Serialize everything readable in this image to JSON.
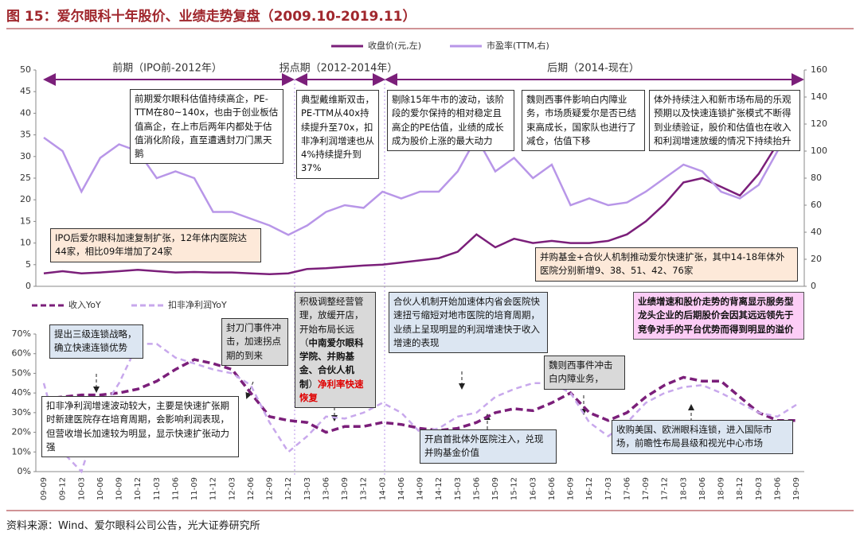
{
  "title": "图 15：爱尔眼科十年股价、业绩走势复盘（2009.10-2019.11）",
  "source": "资料来源：Wind、爱尔眼科公司公告，光大证券研究所",
  "chart_data": [
    {
      "type": "line",
      "period_labels": [
        "前期（IPO前-2012年）",
        "拐点期（2012-2014年）",
        "后期（2014-现在）"
      ],
      "series": [
        {
          "name": "收盘价(元,左)",
          "color": "#7b1f7a",
          "axis": "y",
          "values": [
            3,
            3.5,
            3,
            3.2,
            3.5,
            3.8,
            3.5,
            3.2,
            3.3,
            3.2,
            3.2,
            3,
            2.8,
            3,
            4,
            4.2,
            4.5,
            4.8,
            5,
            5.5,
            6,
            6.5,
            8,
            12,
            9,
            11,
            10,
            10.5,
            10,
            10,
            10.5,
            12,
            15,
            19,
            24,
            25,
            23,
            21,
            26,
            33,
            38
          ]
        },
        {
          "name": "市盈率(TTM,右)",
          "color": "#b896e8",
          "axis": "y2",
          "values": [
            110,
            100,
            70,
            95,
            105,
            100,
            80,
            85,
            80,
            55,
            55,
            50,
            45,
            38,
            45,
            55,
            60,
            58,
            70,
            65,
            70,
            70,
            85,
            110,
            85,
            95,
            80,
            90,
            60,
            65,
            60,
            62,
            70,
            80,
            90,
            85,
            70,
            65,
            75,
            100,
            125
          ]
        }
      ],
      "ylim": [
        0,
        50
      ],
      "yticks": [
        0,
        5,
        10,
        15,
        20,
        25,
        30,
        35,
        40,
        45,
        50
      ],
      "y2lim": [
        0,
        160
      ],
      "y2ticks": [
        0,
        20,
        40,
        60,
        80,
        100,
        120,
        140,
        160
      ],
      "annotations": [
        "前期爱尔眼科估值持续高企，PE-TTM在80~140x，也由于创业板估值高企，在上市后两年内都处于估值消化阶段，直至遭遇封刀门黑天鹅",
        "典型戴维斯双击，PE-TTM从40x持续提升至70x，扣非净利润增速也从4%持续提升到37%",
        "剔除15年牛市的波动，该阶段的爱尔保持的相对稳定且高企的PE估值，业绩的成长成为股价上涨的最大动力",
        "魏则西事件影响白内障业务，市场质疑爱尔是否已结束高成长，国家队也进行了减仓，估值下移",
        "体外持续注入和新市场布局的乐观预期以及快速连锁扩张模式不断得到业绩验证，股价和估值也在收入和利润增速放缓的情况下持续抬升",
        "IPO后爱尔眼科加速复制扩张，12年体内医院达44家，相比09年增加了24家",
        "并购基金+合伙人机制推动爱尔快速扩张，其中14-18年体外医院分别新增9、38、51、42、76家"
      ]
    },
    {
      "type": "line",
      "categories": [
        "09-09",
        "09-12",
        "10-03",
        "10-06",
        "10-09",
        "10-12",
        "11-03",
        "11-06",
        "11-09",
        "11-12",
        "12-03",
        "12-06",
        "12-09",
        "12-12",
        "13-03",
        "13-06",
        "13-09",
        "13-12",
        "14-03",
        "14-06",
        "14-09",
        "14-12",
        "15-03",
        "15-06",
        "15-09",
        "15-12",
        "16-03",
        "16-06",
        "16-09",
        "16-12",
        "17-03",
        "17-06",
        "17-09",
        "17-12",
        "18-03",
        "18-06",
        "18-09",
        "18-12",
        "19-03",
        "19-06",
        "19-09"
      ],
      "series": [
        {
          "name": "收入YoY",
          "color": "#7b1f7a",
          "values": [
            37,
            38,
            39,
            39,
            40,
            42,
            46,
            52,
            57,
            55,
            52,
            40,
            28,
            26,
            25,
            20,
            23,
            23,
            25,
            24,
            22,
            21,
            22,
            25,
            30,
            32,
            31,
            35,
            40,
            30,
            26,
            30,
            38,
            44,
            48,
            46,
            46,
            38,
            30,
            26,
            26
          ]
        },
        {
          "name": "扣非净利润YoY",
          "color": "#c8a8ec",
          "values": [
            45,
            10,
            0,
            30,
            45,
            65,
            65,
            58,
            55,
            52,
            50,
            44,
            25,
            10,
            18,
            28,
            27,
            30,
            35,
            30,
            20,
            22,
            28,
            30,
            38,
            42,
            45,
            45,
            40,
            25,
            18,
            25,
            35,
            40,
            43,
            44,
            40,
            35,
            30,
            28,
            34
          ]
        }
      ],
      "ylim": [
        0,
        70
      ],
      "yticks": [
        {
          "value": 0,
          "label": "0%"
        },
        {
          "value": 10,
          "label": "10%"
        },
        {
          "value": 20,
          "label": "20%"
        },
        {
          "value": 30,
          "label": "30%"
        },
        {
          "value": 40,
          "label": "40%"
        },
        {
          "value": 50,
          "label": "50%"
        },
        {
          "value": 60,
          "label": "60%"
        },
        {
          "value": 70,
          "label": "70%"
        }
      ],
      "annotations": [
        "提出三级连锁战略，确立快速连锁优势",
        "封刀门事件冲击，加速拐点期的到来",
        {
          "plain": "积极调整经营管理，放缓开店，开始布局长远（",
          "bold": "中南爱尔眼科学院、并购基金、合伙人机制",
          "close": "）",
          "red": "净利率快速恢复"
        },
        "合伙人机制开始加速体内省会医院快速扭亏缩短对地市医院的培育周期，业绩上呈现明显的利润增速快于收入增速的表现",
        "业绩增速和股价走势的背离显示服务型龙头企业的后期股价会因其远远领先于竞争对手的平台优势而得到明显的溢价",
        "魏则西事件冲击白内障业务，",
        "扣非净利润增速波动较大，主要是快速扩张期时新建医院存在培育周期，会影响利润表现，但营收增长加速较为明显，显示快速扩张动力强",
        "开启首批体外医院注入，兑现并购基金价值",
        "收购美国、欧洲眼科连锁，进入国际市场，前瞻性布局县级和视光中心市场"
      ]
    }
  ]
}
